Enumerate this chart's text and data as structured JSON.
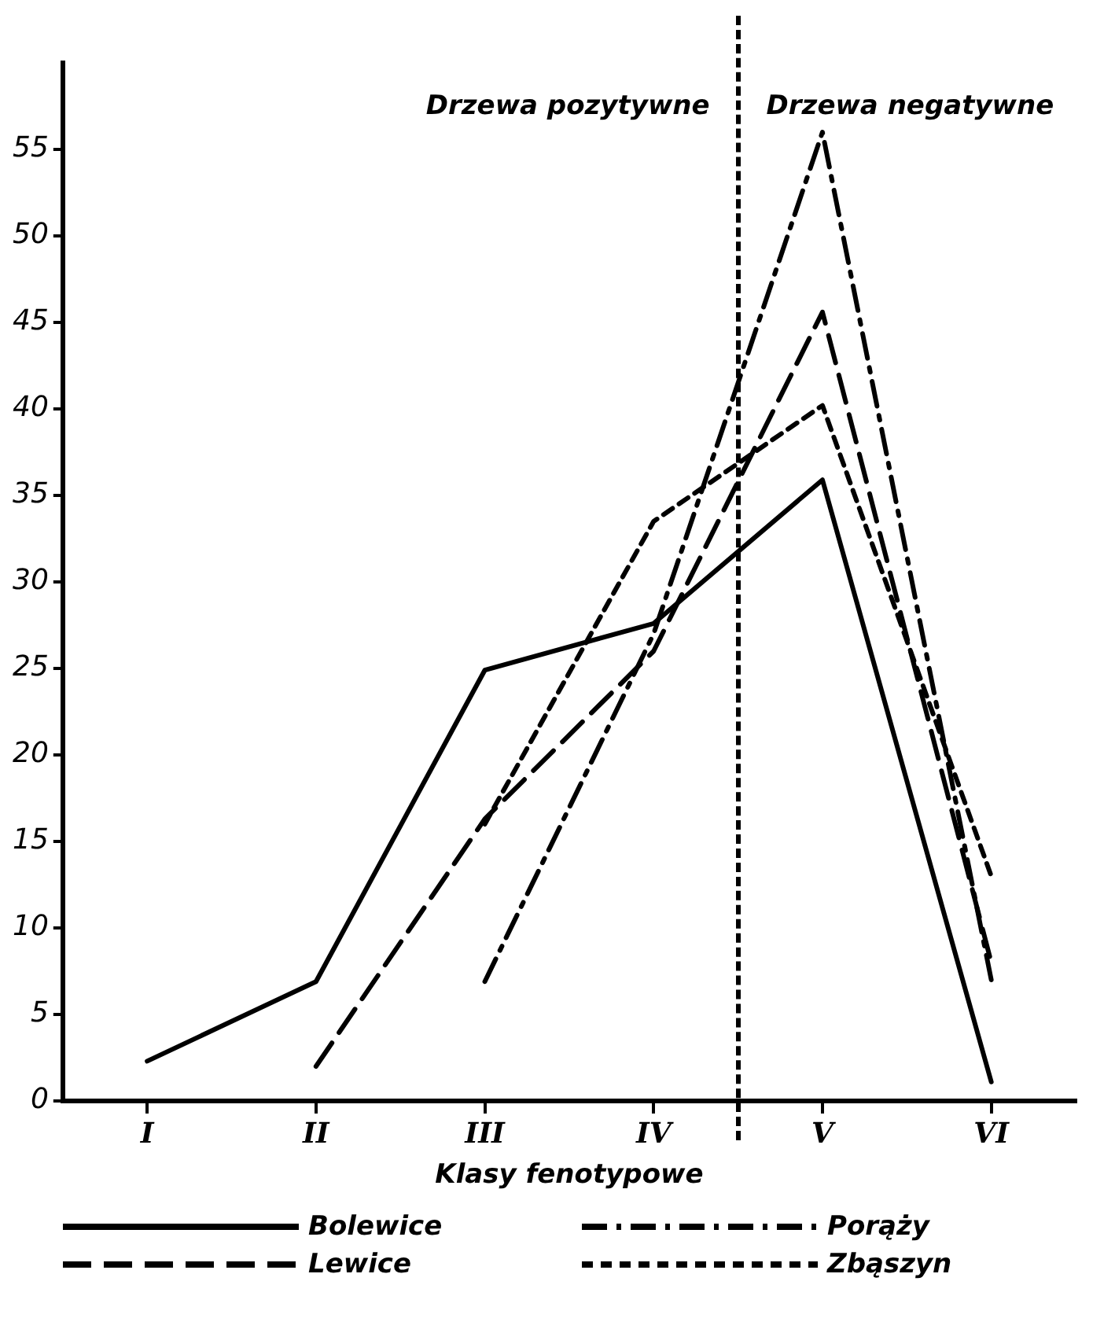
{
  "chart_data": {
    "type": "line",
    "xlabel": "Klasy fenotypowe",
    "categories": [
      "I",
      "II",
      "III",
      "IV",
      "V",
      "VI"
    ],
    "ylim": [
      0,
      60
    ],
    "yticks": [
      0,
      5,
      10,
      15,
      20,
      25,
      30,
      35,
      40,
      45,
      50,
      55
    ],
    "series": [
      {
        "name": "Bolewice",
        "color": "#000000",
        "line_style": "solid",
        "values": [
          2.3,
          6.9,
          24.9,
          27.6,
          35.9,
          1.1
        ]
      },
      {
        "name": "Porąży",
        "color": "#000000",
        "line_style": "dashdot",
        "values": [
          null,
          null,
          6.9,
          27,
          56,
          7
        ]
      },
      {
        "name": "Lewice",
        "color": "#000000",
        "line_style": "dashed",
        "values": [
          null,
          2,
          16.3,
          26,
          45.6,
          8
        ]
      },
      {
        "name": "Zbąszyn",
        "color": "#000000",
        "line_style": "dotted",
        "values": [
          null,
          null,
          16,
          33.5,
          40.2,
          13
        ]
      }
    ],
    "annotations": [
      "Drzewa pozytywne",
      "Drzewa negatywne"
    ],
    "grid": false,
    "legend": "bottom",
    "marker": "none"
  }
}
